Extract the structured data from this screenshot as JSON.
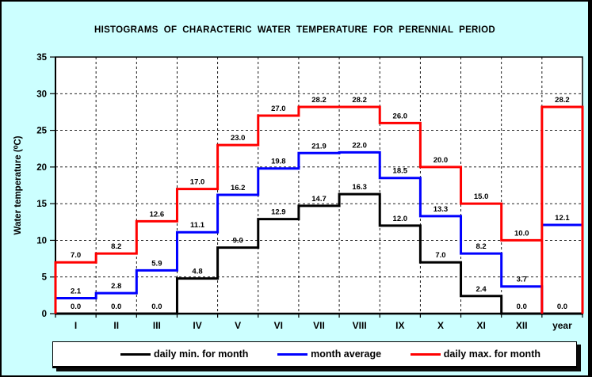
{
  "title": "HISTOGRAMS  OF  CHARACTERIC  WATER  TEMPERATURE  FOR  PERENNIAL  PERIOD",
  "colors": {
    "background": "#CCFFFF",
    "plot_background": "#FFFFFF",
    "axis": "#000000",
    "grid": "#000000",
    "daily_min": "#000000",
    "month_average": "#0000FF",
    "daily_max": "#FF0000"
  },
  "chart_data": {
    "type": "line",
    "subtype": "step-histogram",
    "title": "HISTOGRAMS  OF  CHARACTERIC  WATER  TEMPERATURE  FOR  PERENNIAL  PERIOD",
    "xlabel": "",
    "ylabel": "Water temperature (⁰C)",
    "ylim": [
      0,
      35
    ],
    "yticks": [
      0,
      5,
      10,
      15,
      20,
      25,
      30,
      35
    ],
    "grid": "dashed",
    "legend_position": "bottom",
    "categories": [
      "I",
      "II",
      "III",
      "IV",
      "V",
      "VI",
      "VII",
      "VIII",
      "IX",
      "X",
      "XI",
      "XII",
      "year"
    ],
    "series": [
      {
        "name": "daily min. for month",
        "color": "#000000",
        "values": [
          0.0,
          0.0,
          0.0,
          4.8,
          9.0,
          12.9,
          14.7,
          16.3,
          12.0,
          7.0,
          2.4,
          0.0,
          0.0
        ]
      },
      {
        "name": "month average",
        "color": "#0000FF",
        "values": [
          2.1,
          2.8,
          5.9,
          11.1,
          16.2,
          19.8,
          21.9,
          22.0,
          18.5,
          13.3,
          8.2,
          3.7,
          12.1
        ]
      },
      {
        "name": "daily max. for month",
        "color": "#FF0000",
        "values": [
          7.0,
          8.2,
          12.6,
          17.0,
          23.0,
          27.0,
          28.2,
          28.2,
          26.0,
          20.0,
          15.0,
          10.0,
          28.2
        ]
      }
    ]
  },
  "legend": {
    "items": [
      {
        "label": "daily min. for month",
        "color": "#000000"
      },
      {
        "label": "month average",
        "color": "#0000FF"
      },
      {
        "label": "daily max. for month",
        "color": "#FF0000"
      }
    ]
  }
}
